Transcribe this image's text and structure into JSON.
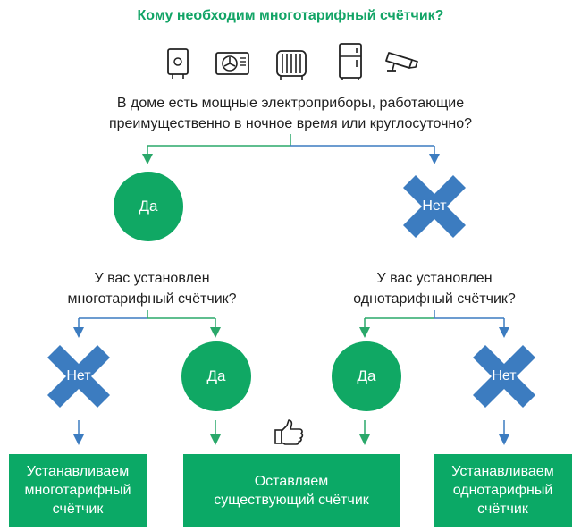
{
  "title": "Кому необходим многотарифный счётчик?",
  "appliance_icons": [
    "water-heater-icon",
    "air-conditioner-icon",
    "oil-radiator-icon",
    "refrigerator-icon",
    "security-camera-icon"
  ],
  "root_question": {
    "line1": "В доме есть мощные электроприборы, работающие",
    "line2": "преимущественно в ночное время или круглосуточно?"
  },
  "root_yes": "Да",
  "root_no": "Нет",
  "question_yes_branch": {
    "line1": "У вас установлен",
    "line2": "многотарифный счётчик?"
  },
  "question_no_branch": {
    "line1": "У вас установлен",
    "line2": "однотарифный счётчик?"
  },
  "left_no": "Нет",
  "left_yes": "Да",
  "right_yes": "Да",
  "right_no": "Нет",
  "results": {
    "install_multi": {
      "line1": "Устанавливаем",
      "line2": "многотарифный",
      "line3": "счётчик"
    },
    "keep_existing": {
      "line1": "Оставляем",
      "line2": "существующий счётчик"
    },
    "install_single": {
      "line1": "Устанавливаем",
      "line2": "однотарифный",
      "line3": "счётчик"
    }
  },
  "thumbs_up_icon": "thumbs-up-icon",
  "colors": {
    "title_green": "#12a466",
    "yes_green": "#10a864",
    "no_blue": "#3c7cc0",
    "result_green": "#0ba966",
    "connector_green": "#2aa86a",
    "connector_blue": "#3c7cc0",
    "icon_stroke": "#222222"
  }
}
